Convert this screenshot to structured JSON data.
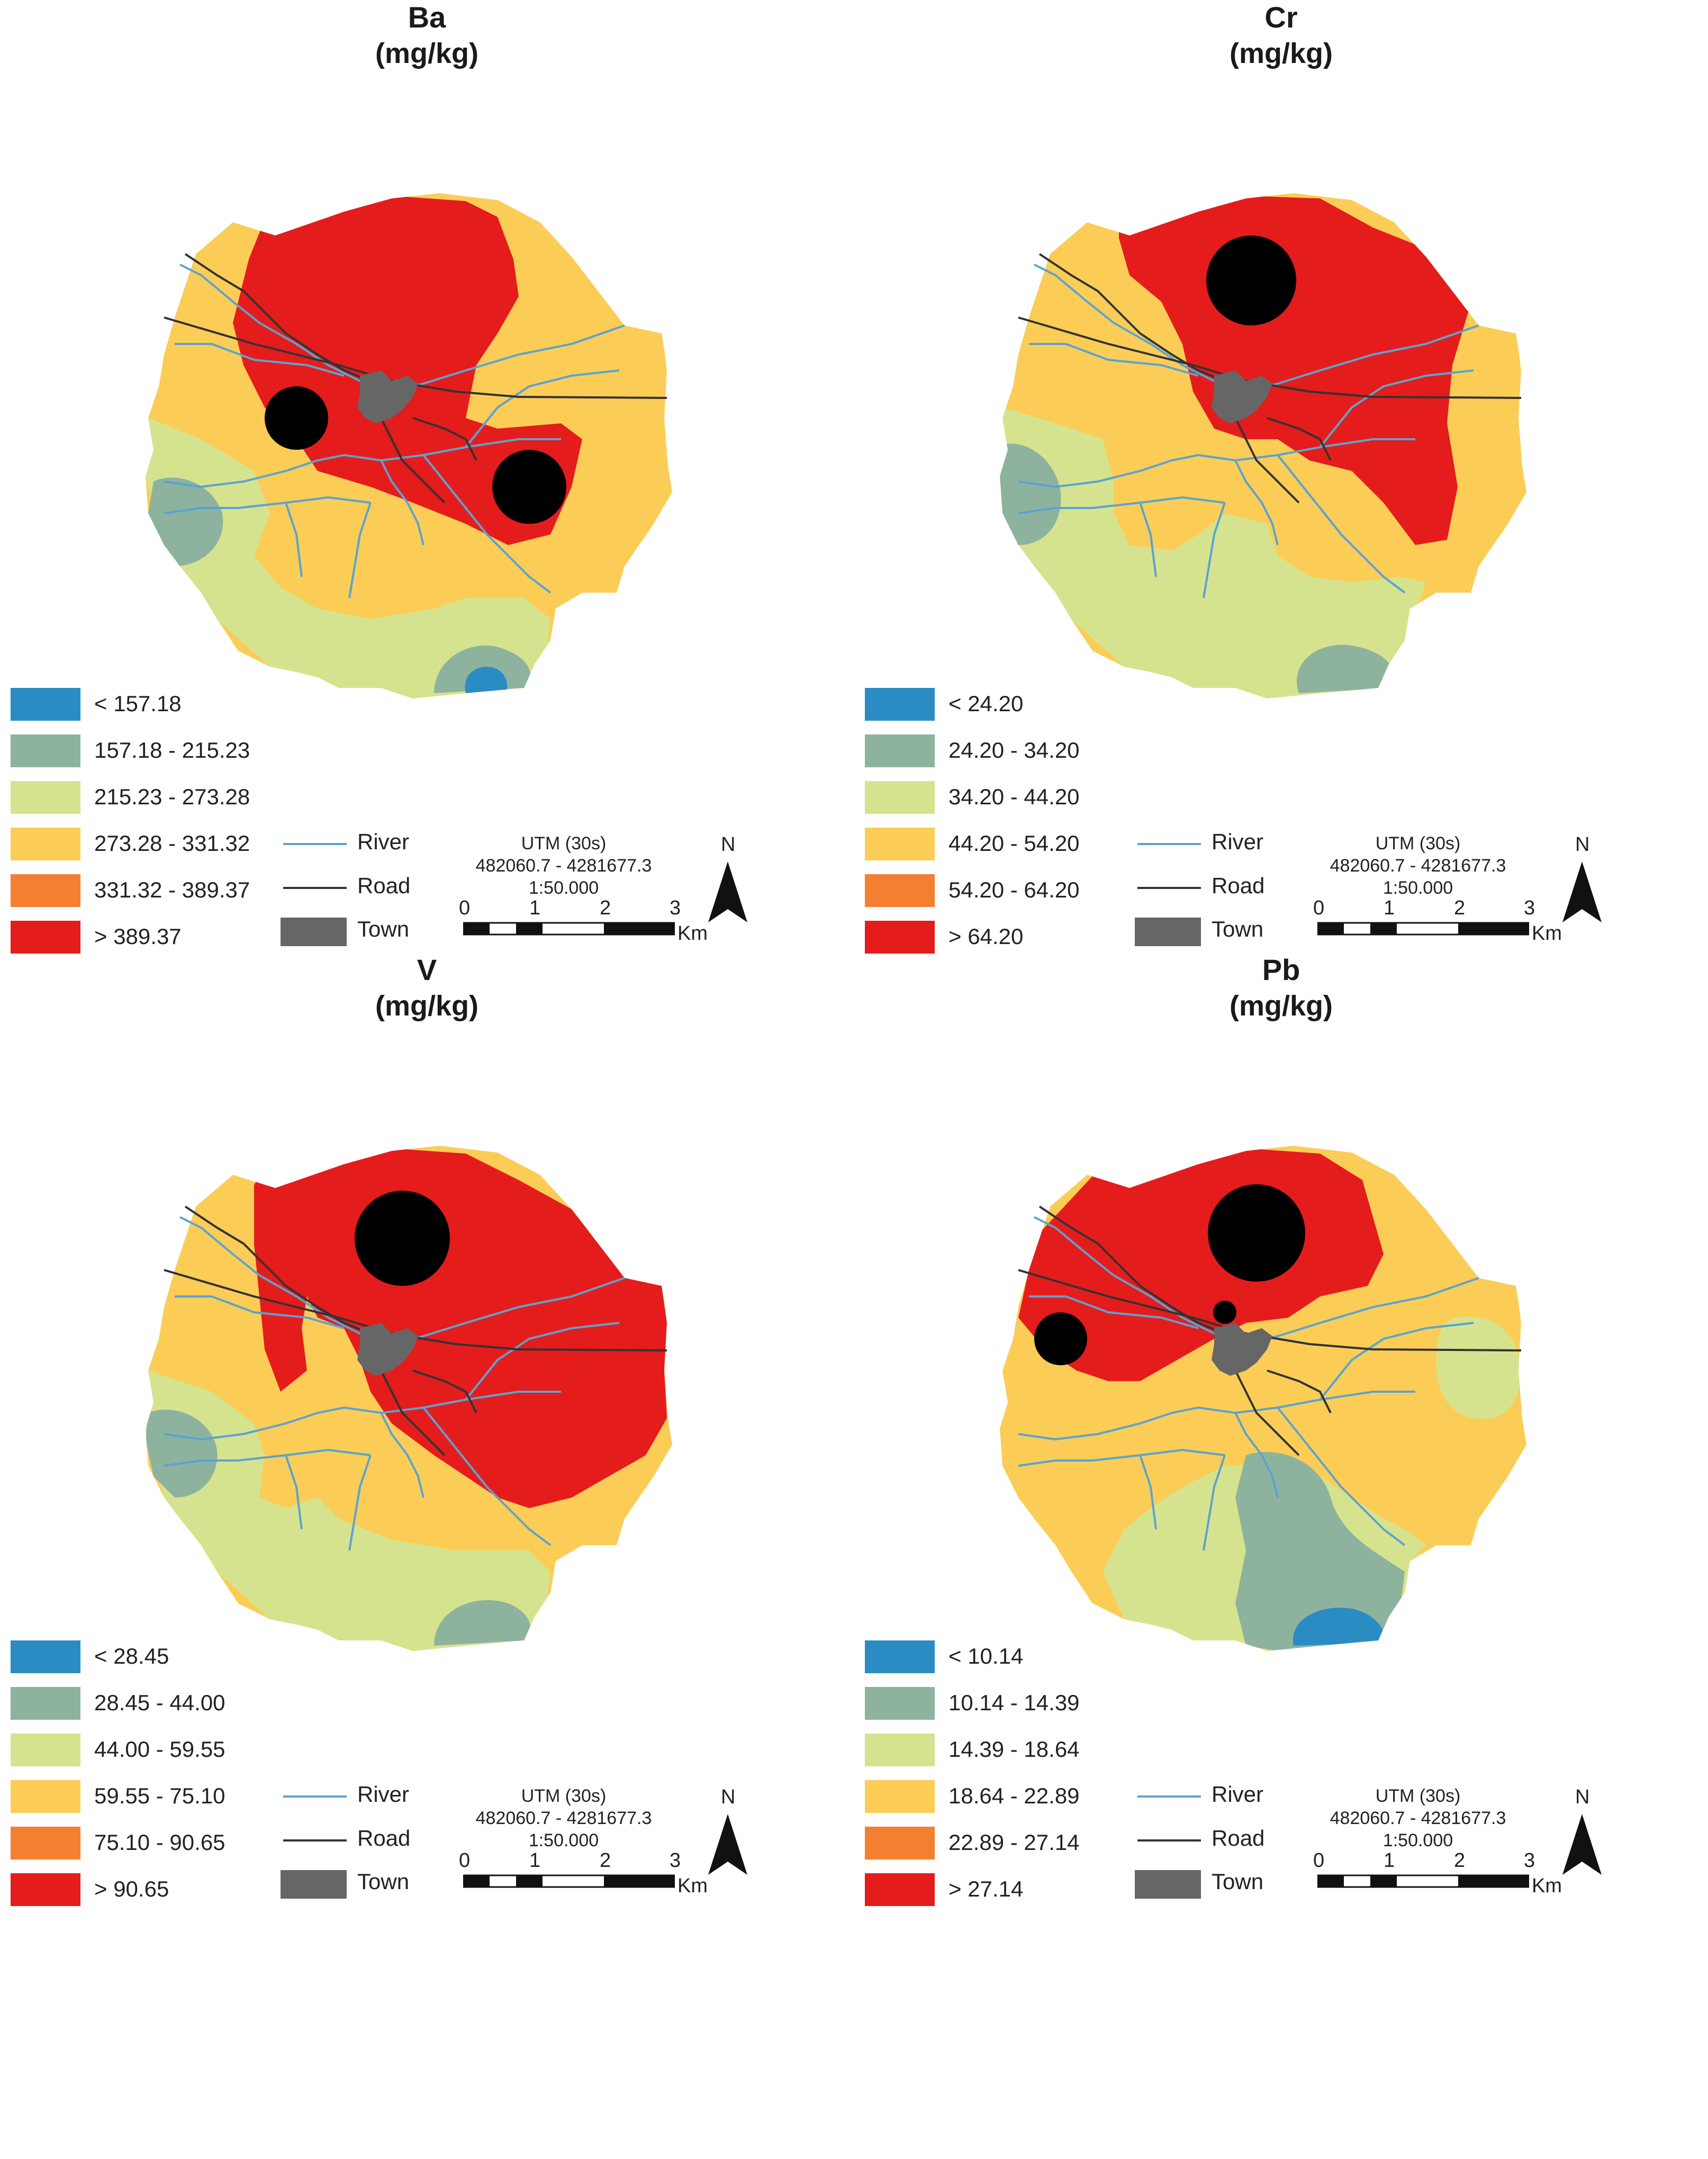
{
  "colors": {
    "class1": "#2b8cc4",
    "class2": "#8db39f",
    "class3": "#d6e38e",
    "class4": "#fbcd57",
    "class5": "#f47f31",
    "class6": "#e51c1c",
    "river": "#5ba3d0",
    "road": "#333333",
    "town": "#666666"
  },
  "common": {
    "river_label": "River",
    "road_label": "Road",
    "town_label": "Town",
    "projection": "UTM (30s)",
    "extent": "482060.7 - 4281677.3",
    "scale_ratio": "1:50.000",
    "scale_ticks": [
      "0",
      "1",
      "2",
      "3"
    ],
    "scale_unit": "Km",
    "north_label": "N"
  },
  "panels": [
    {
      "element": "Ba",
      "unit": "(mg/kg)",
      "classes": [
        "< 157.18",
        "157.18 - 215.23",
        "215.23 - 273.28",
        "273.28 - 331.32",
        "331.32 - 389.37",
        "> 389.37"
      ]
    },
    {
      "element": "Cr",
      "unit": "(mg/kg)",
      "classes": [
        "< 24.20",
        "24.20 - 34.20",
        "34.20 - 44.20",
        "44.20 - 54.20",
        "54.20 - 64.20",
        "> 64.20"
      ]
    },
    {
      "element": "V",
      "unit": "(mg/kg)",
      "classes": [
        "< 28.45",
        "28.45 - 44.00",
        "44.00 - 59.55",
        "59.55 - 75.10",
        "75.10 - 90.65",
        "> 90.65"
      ]
    },
    {
      "element": "Pb",
      "unit": "(mg/kg)",
      "classes": [
        "< 10.14",
        "10.14 - 14.39",
        "14.39 - 18.64",
        "18.64 - 22.89",
        "22.89 - 27.14",
        "> 27.14"
      ]
    }
  ]
}
